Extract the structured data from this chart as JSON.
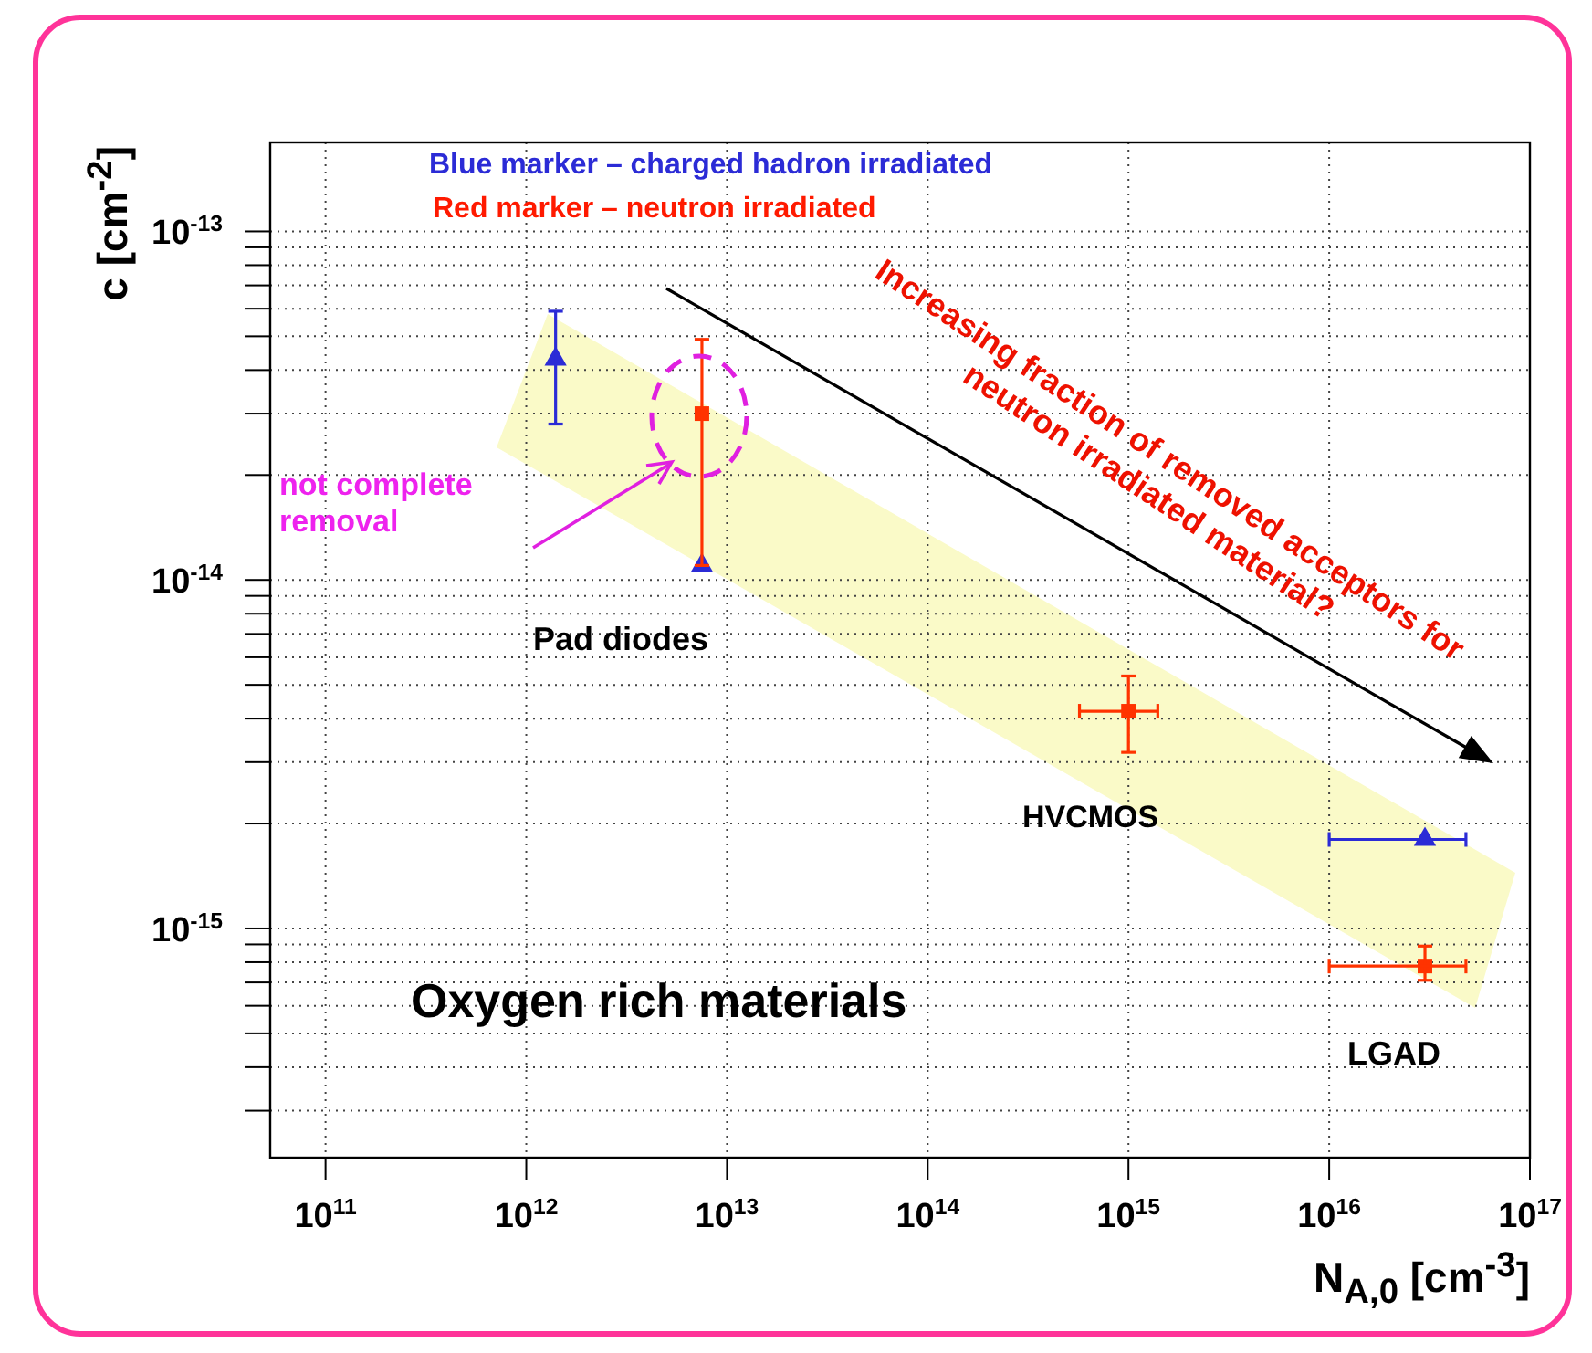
{
  "chart_data": {
    "type": "scatter",
    "xlabel": "N$_{A,0}$ [cm$^{-3}$]",
    "ylabel": "c [cm$^{-2}$]",
    "log": "xy",
    "grid": true,
    "xlim": [
      53000000000.0,
      1e+17
    ],
    "xticks": [
      {
        "value": 100000000000.0,
        "label": "10$^{11}$"
      },
      {
        "value": 1000000000000.0,
        "label": "10$^{12}$"
      },
      {
        "value": 10000000000000.0,
        "label": "10$^{13}$"
      },
      {
        "value": 100000000000000.0,
        "label": "10$^{14}$"
      },
      {
        "value": 1000000000000000.0,
        "label": "10$^{15}$"
      },
      {
        "value": 1e+16,
        "label": "10$^{16}$"
      },
      {
        "value": 1e+17,
        "label": "10$^{17}$"
      }
    ],
    "ylim": [
      2.2e-16,
      1.8e-13
    ],
    "yticks": [
      {
        "value": 3e-16,
        "label": null
      },
      {
        "value": 4e-16,
        "label": null
      },
      {
        "value": 5e-16,
        "label": null
      },
      {
        "value": 6e-16,
        "label": null
      },
      {
        "value": 7e-16,
        "label": null
      },
      {
        "value": 8e-16,
        "label": null
      },
      {
        "value": 9e-16,
        "label": null
      },
      {
        "value": 1e-15,
        "label": "10$^{-15}$"
      },
      {
        "value": 2e-15,
        "label": null
      },
      {
        "value": 3e-15,
        "label": null
      },
      {
        "value": 4e-15,
        "label": null
      },
      {
        "value": 5e-15,
        "label": null
      },
      {
        "value": 6e-15,
        "label": null
      },
      {
        "value": 7e-15,
        "label": null
      },
      {
        "value": 8e-15,
        "label": null
      },
      {
        "value": 9e-15,
        "label": null
      },
      {
        "value": 1e-14,
        "label": "10$^{-14}$"
      },
      {
        "value": 2e-14,
        "label": null
      },
      {
        "value": 3e-14,
        "label": null
      },
      {
        "value": 4e-14,
        "label": null
      },
      {
        "value": 5e-14,
        "label": null
      },
      {
        "value": 6e-14,
        "label": null
      },
      {
        "value": 7e-14,
        "label": null
      },
      {
        "value": 8e-14,
        "label": null
      },
      {
        "value": 9e-14,
        "label": null
      },
      {
        "value": 1e-13,
        "label": "10$^{-13}$"
      }
    ],
    "series": [
      {
        "color": "#2b2bd6",
        "marker": "triangle",
        "x": [
          1400000000000.0,
          7500000000000.0,
          3e+16
        ],
        "values": [
          4.3e-14,
          1.1e-14,
          1.8e-15
        ],
        "errors": [
          [
            2.8e-14,
            5.9e-14
          ],
          null,
          null
        ],
        "xerrors": [
          null,
          null,
          [
            1e+16,
            4.8e+16
          ]
        ]
      },
      {
        "color": "#ff3300",
        "marker": "square",
        "x": [
          7500000000000.0,
          1000000000000000.0,
          3e+16
        ],
        "values": [
          3e-14,
          4.2e-15,
          7.8e-16
        ],
        "errors": [
          [
            1.1e-14,
            4.9e-14
          ],
          [
            3.2e-15,
            5.3e-15
          ],
          [
            7.1e-16,
            8.9e-16
          ]
        ],
        "xerrors": [
          null,
          [
            570000000000000.0,
            1400000000000000.0
          ],
          [
            1e+16,
            4.8e+16
          ]
        ]
      }
    ],
    "annotations": [
      "Blue marker – charged hadron irradiated",
      "Red marker – neutron irradiated",
      "Increasing fraction of removed acceptors for neutron irradiated material?",
      "not complete removal",
      "Pad diodes",
      "HVCMOS",
      "LGAD",
      "Oxygen rich materials"
    ]
  }
}
